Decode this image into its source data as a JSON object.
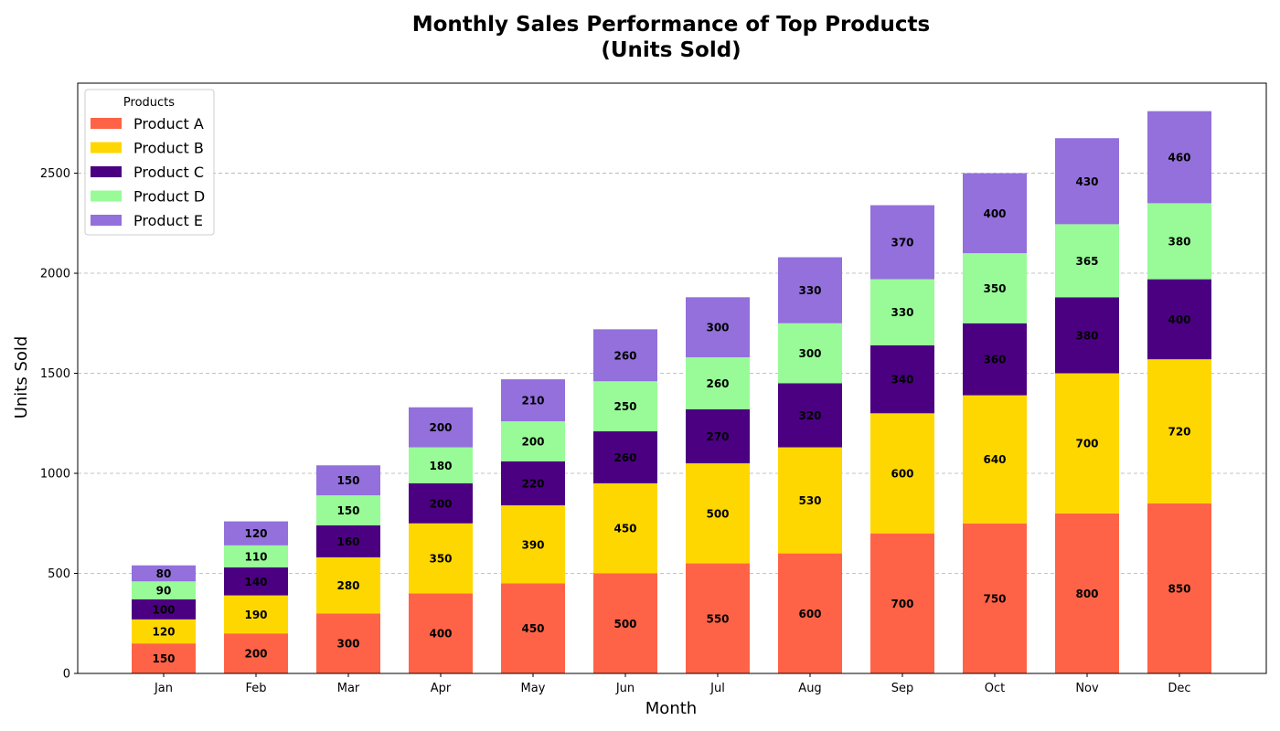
{
  "chart_data": {
    "type": "bar",
    "stacked": true,
    "title_line1": "Monthly Sales Performance of Top Products",
    "title_line2": "(Units Sold)",
    "xlabel": "Month",
    "ylabel": "Units Sold",
    "ylim": [
      0,
      2950
    ],
    "yticks": [
      0,
      500,
      1000,
      1500,
      2000,
      2500
    ],
    "grid": "y-dashed",
    "legend_title": "Products",
    "legend_position": "top-left",
    "categories": [
      "Jan",
      "Feb",
      "Mar",
      "Apr",
      "May",
      "Jun",
      "Jul",
      "Aug",
      "Sep",
      "Oct",
      "Nov",
      "Dec"
    ],
    "series": [
      {
        "name": "Product A",
        "color": "#ff6347",
        "values": [
          150,
          200,
          300,
          400,
          450,
          500,
          550,
          600,
          700,
          750,
          800,
          850
        ]
      },
      {
        "name": "Product B",
        "color": "#ffd700",
        "values": [
          120,
          190,
          280,
          350,
          390,
          450,
          500,
          530,
          600,
          640,
          700,
          720
        ]
      },
      {
        "name": "Product C",
        "color": "#4b0082",
        "values": [
          100,
          140,
          160,
          200,
          220,
          260,
          270,
          320,
          340,
          360,
          380,
          400
        ]
      },
      {
        "name": "Product D",
        "color": "#98fb98",
        "values": [
          90,
          110,
          150,
          180,
          200,
          250,
          260,
          300,
          330,
          350,
          365,
          380
        ]
      },
      {
        "name": "Product E",
        "color": "#9370db",
        "values": [
          80,
          120,
          150,
          200,
          210,
          260,
          300,
          330,
          370,
          400,
          430,
          460
        ]
      }
    ]
  }
}
